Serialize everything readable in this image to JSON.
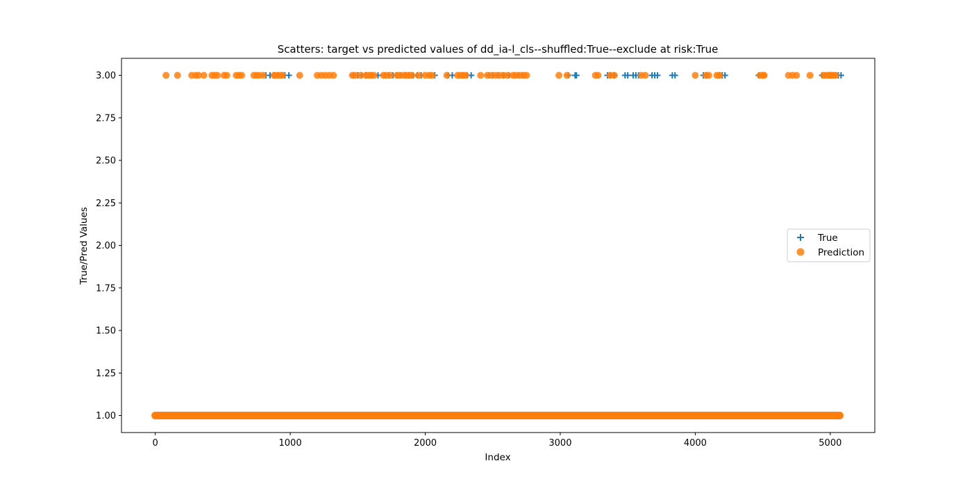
{
  "chart_data": {
    "type": "scatter",
    "title": "Scatters: target vs predicted values of dd_ia-l_cls--shuffled:True--exclude at risk:True",
    "xlabel": "Index",
    "ylabel": "True/Pred Values",
    "xlim": [
      -250,
      5330
    ],
    "ylim": [
      0.9,
      3.1
    ],
    "xticks": [
      0,
      1000,
      2000,
      3000,
      4000,
      5000
    ],
    "xtick_labels": [
      "0",
      "1000",
      "2000",
      "3000",
      "4000",
      "5000"
    ],
    "yticks": [
      1.0,
      1.25,
      1.5,
      1.75,
      2.0,
      2.25,
      2.5,
      2.75,
      3.0
    ],
    "ytick_labels": [
      "1.00",
      "1.25",
      "1.50",
      "1.75",
      "2.00",
      "2.25",
      "2.50",
      "2.75",
      "3.00"
    ],
    "grid": false,
    "legend_position": "center-right",
    "series": [
      {
        "name": "True",
        "marker": "plus",
        "color": "#1f77b4",
        "y_value": 3,
        "x": [
          820,
          850,
          880,
          910,
          940,
          960,
          990,
          1470,
          1500,
          1530,
          1560,
          1600,
          1650,
          1700,
          1730,
          1760,
          1790,
          1820,
          1850,
          1880,
          1910,
          1940,
          1970,
          2040,
          2070,
          2170,
          2200,
          2280,
          2310,
          2340,
          2470,
          2500,
          2540,
          2580,
          2620,
          2690,
          2720,
          3060,
          3110,
          3120,
          3350,
          3370,
          3400,
          3480,
          3500,
          3540,
          3560,
          3580,
          3680,
          3700,
          3720,
          3830,
          3850,
          4060,
          4080,
          4180,
          4200,
          4220,
          4470,
          4510,
          4940,
          4960,
          5000,
          5020,
          5040,
          5060,
          5080
        ]
      },
      {
        "name": "Prediction",
        "marker": "circle",
        "color": "#ff7f0e",
        "y_value": 3,
        "x": [
          80,
          165,
          270,
          300,
          320,
          360,
          420,
          440,
          460,
          510,
          530,
          600,
          620,
          640,
          730,
          750,
          770,
          800,
          880,
          900,
          920,
          940,
          1070,
          1200,
          1230,
          1260,
          1290,
          1320,
          1460,
          1480,
          1520,
          1560,
          1580,
          1600,
          1620,
          1690,
          1710,
          1740,
          1790,
          1810,
          1840,
          1860,
          1880,
          1900,
          1950,
          2000,
          2030,
          2050,
          2160,
          2240,
          2260,
          2280,
          2300,
          2410,
          2460,
          2490,
          2520,
          2550,
          2580,
          2610,
          2650,
          2670,
          2700,
          2730,
          2750,
          2990,
          3050,
          3260,
          3280,
          3370,
          3400,
          3600,
          3630,
          4000,
          4080,
          4100,
          4160,
          4180,
          4480,
          4500,
          4510,
          4690,
          4720,
          4750,
          4850,
          4950,
          4970,
          4990,
          5000,
          5010,
          5020,
          5040
        ]
      }
    ],
    "baseline_band": {
      "y_value": 1,
      "x_range": [
        0,
        5070
      ],
      "color": "#ff7f0e"
    }
  }
}
